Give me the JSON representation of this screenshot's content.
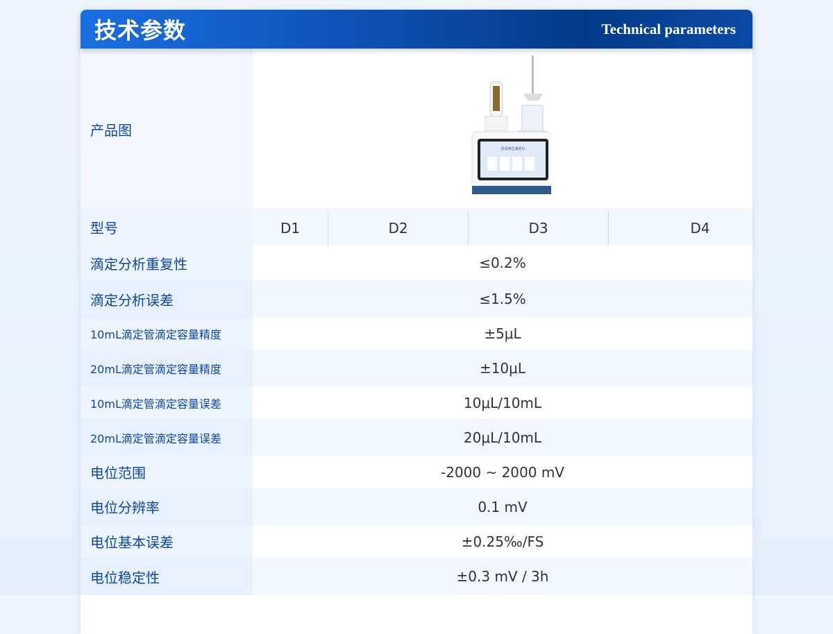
{
  "header": {
    "title": "技术参数",
    "subtitle": "Technical parameters"
  },
  "image_row": {
    "label": "产品图",
    "device_screen_title": "自动电位滴定仪"
  },
  "model_row": {
    "label": "型号",
    "models": [
      "D1",
      "D2",
      "D3",
      "D4"
    ]
  },
  "rows": [
    {
      "label": "滴定分析重复性",
      "value": "≤0.2%"
    },
    {
      "label": "滴定分析误差",
      "value": "≤1.5%"
    },
    {
      "label": "10mL滴定管滴定容量精度",
      "value": "±5μL"
    },
    {
      "label": "20mL滴定管滴定容量精度",
      "value": "±10μL"
    },
    {
      "label": "10mL滴定管滴定容量误差",
      "value": "10μL/10mL"
    },
    {
      "label": "20mL滴定管滴定容量误差",
      "value": "20μL/10mL"
    },
    {
      "label": "电位范围",
      "value": "-2000 ~ 2000 mV"
    },
    {
      "label": "电位分辨率",
      "value": "0.1 mV"
    },
    {
      "label": "电位基本误差",
      "value": "±0.25‰/FS"
    },
    {
      "label": "电位稳定性",
      "value": "±0.3 mV / 3h"
    }
  ]
}
